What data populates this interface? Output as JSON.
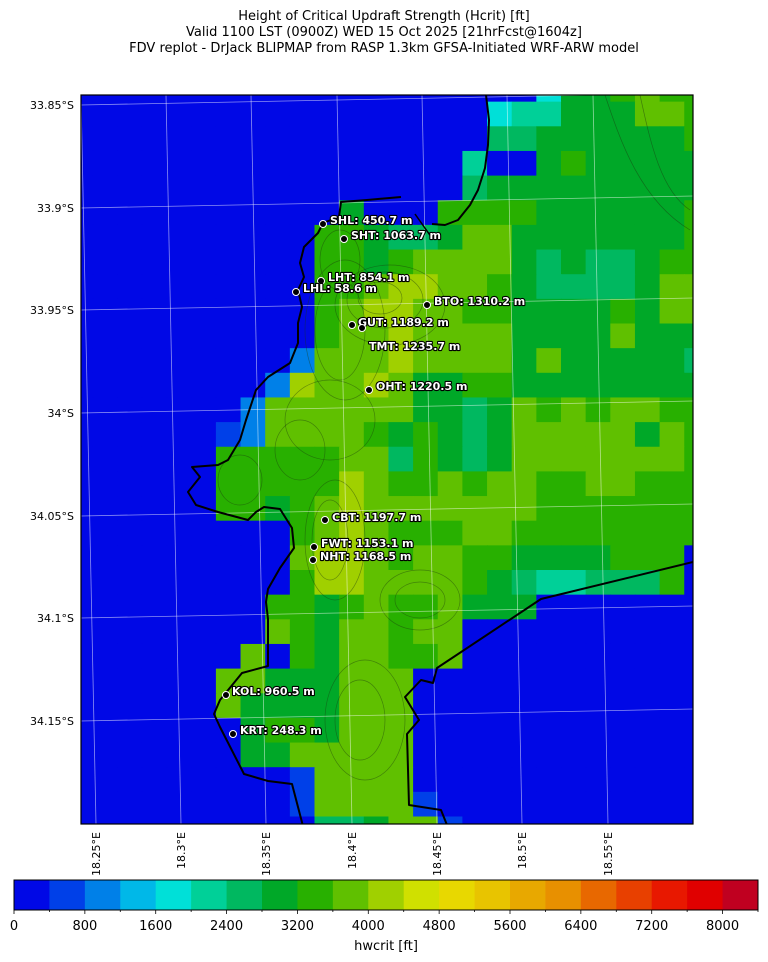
{
  "title": {
    "line1": "Height of Critical Updraft Strength (Hcrit) [ft]",
    "line2": "Valid 1100 LST (0900Z) WED 15 Oct 2025 [21hrFcst@1604z]",
    "line3": "FDV replot - DrJack BLIPMAP from RASP 1.3km GFSA-Initiated WRF-ARW model"
  },
  "chart_data": {
    "type": "heatmap",
    "variable": "hwcrit",
    "units": "ft",
    "colorbar_label": "hwcrit [ft]",
    "colorbar_range": [
      0,
      8400
    ],
    "colorbar_step": 400,
    "colorbar_ticks": [
      "0",
      "800",
      "1600",
      "2400",
      "3200",
      "4000",
      "4800",
      "5600",
      "6400",
      "7200",
      "8000"
    ],
    "colors": [
      "#0008e6",
      "#0040e8",
      "#0080e8",
      "#00b8e8",
      "#00e0d8",
      "#00d098",
      "#00b860",
      "#00a828",
      "#28b000",
      "#60c000",
      "#a0d000",
      "#d0e000",
      "#e8d800",
      "#e8c400",
      "#e8a800",
      "#e89000",
      "#e86800",
      "#e84000",
      "#e81800",
      "#e00000",
      "#c00020"
    ],
    "lat_ticks": [
      "33.85°S",
      "33.9°S",
      "33.95°S",
      "34°S",
      "34.05°S",
      "34.1°S",
      "34.15°S"
    ],
    "lon_ticks": [
      "18.25°E",
      "18.3°E",
      "18.35°E",
      "18.4°E",
      "18.45°E",
      "18.5°E",
      "18.55°E"
    ],
    "grid": true,
    "values_ft": [
      [
        200,
        200,
        200,
        200,
        200,
        200,
        200,
        200,
        200,
        200,
        200,
        200,
        200,
        200,
        200,
        200,
        200,
        200,
        200,
        1800,
        3000,
        3000,
        3400,
        3800,
        3400,
        3400
      ],
      [
        200,
        200,
        200,
        200,
        200,
        200,
        200,
        200,
        200,
        200,
        200,
        200,
        200,
        200,
        200,
        200,
        200,
        1800,
        2200,
        2200,
        3000,
        3000,
        3000,
        3800,
        3800,
        3400
      ],
      [
        200,
        200,
        200,
        200,
        200,
        200,
        200,
        200,
        200,
        200,
        200,
        200,
        200,
        200,
        200,
        200,
        200,
        2600,
        2600,
        3000,
        3000,
        3000,
        3000,
        3000,
        3000,
        3400
      ],
      [
        200,
        200,
        200,
        200,
        200,
        200,
        200,
        200,
        200,
        200,
        200,
        200,
        200,
        200,
        200,
        200,
        2200,
        200,
        200,
        3000,
        3400,
        3000,
        3000,
        3000,
        3000,
        3000
      ],
      [
        200,
        200,
        200,
        200,
        200,
        200,
        200,
        200,
        200,
        200,
        200,
        200,
        200,
        200,
        200,
        200,
        2600,
        3000,
        3000,
        3000,
        3000,
        3000,
        3000,
        3000,
        3000,
        3000
      ],
      [
        200,
        200,
        200,
        200,
        200,
        200,
        200,
        200,
        200,
        200,
        200,
        3000,
        200,
        200,
        200,
        3400,
        3400,
        3400,
        3400,
        3000,
        3000,
        3000,
        3000,
        3000,
        3000,
        3400
      ],
      [
        200,
        200,
        200,
        200,
        200,
        200,
        200,
        200,
        200,
        200,
        3400,
        3400,
        3000,
        2600,
        2600,
        3000,
        3800,
        3800,
        3000,
        3000,
        3000,
        3000,
        3000,
        3000,
        3000,
        3400
      ],
      [
        200,
        200,
        200,
        200,
        200,
        200,
        200,
        200,
        200,
        200,
        3400,
        3400,
        3000,
        3400,
        3800,
        3800,
        3800,
        3800,
        3000,
        2600,
        3000,
        2600,
        2600,
        3000,
        3400,
        3400
      ],
      [
        200,
        200,
        200,
        200,
        200,
        200,
        200,
        200,
        200,
        200,
        3400,
        3400,
        3800,
        4200,
        4200,
        3800,
        3800,
        3400,
        3000,
        2600,
        2600,
        2600,
        2600,
        3000,
        3800,
        3800
      ],
      [
        200,
        200,
        200,
        200,
        200,
        200,
        200,
        200,
        200,
        200,
        3400,
        3800,
        4200,
        4200,
        3800,
        3800,
        3400,
        3400,
        3000,
        3000,
        3000,
        3000,
        3400,
        3000,
        3800,
        3800
      ],
      [
        200,
        200,
        200,
        200,
        200,
        200,
        200,
        200,
        200,
        200,
        3400,
        3800,
        3800,
        4200,
        3800,
        3800,
        3800,
        3800,
        3000,
        3000,
        3000,
        3000,
        3800,
        3000,
        3000,
        3000
      ],
      [
        200,
        200,
        200,
        200,
        200,
        200,
        200,
        200,
        200,
        1000,
        3800,
        3800,
        3800,
        4200,
        3800,
        3800,
        3800,
        3800,
        3000,
        3800,
        3000,
        3000,
        3000,
        3000,
        3000,
        2600
      ],
      [
        200,
        200,
        200,
        200,
        200,
        200,
        200,
        200,
        1000,
        4200,
        3800,
        3800,
        4200,
        3800,
        3000,
        3000,
        3400,
        3400,
        3000,
        3000,
        3000,
        3000,
        3000,
        3000,
        3000,
        3000
      ],
      [
        200,
        200,
        200,
        200,
        200,
        200,
        200,
        1000,
        3800,
        3800,
        3800,
        3800,
        3800,
        3800,
        3000,
        3000,
        2600,
        3000,
        3800,
        3400,
        3800,
        3400,
        3800,
        3800,
        3400,
        3400
      ],
      [
        200,
        200,
        200,
        200,
        200,
        200,
        600,
        1000,
        3800,
        3800,
        3800,
        3800,
        3400,
        3000,
        3400,
        3000,
        2600,
        3000,
        3800,
        3800,
        3800,
        3800,
        3800,
        3000,
        3800,
        3400
      ],
      [
        200,
        200,
        200,
        200,
        200,
        200,
        3400,
        3400,
        3400,
        3400,
        3400,
        3800,
        3800,
        2600,
        3400,
        3000,
        2600,
        3000,
        3800,
        3800,
        3800,
        3800,
        3800,
        3800,
        3800,
        3400
      ],
      [
        200,
        200,
        200,
        200,
        200,
        200,
        3400,
        3400,
        3400,
        3400,
        3400,
        4200,
        3800,
        3400,
        3400,
        3800,
        3400,
        3800,
        3800,
        3400,
        3400,
        3800,
        3800,
        3400,
        3400,
        3400
      ],
      [
        200,
        200,
        200,
        200,
        200,
        200,
        3400,
        3400,
        3000,
        3400,
        3800,
        4200,
        3800,
        3800,
        3800,
        3800,
        3800,
        3800,
        3800,
        3400,
        3400,
        3400,
        3400,
        3400,
        3400,
        3400
      ],
      [
        200,
        200,
        200,
        200,
        200,
        200,
        200,
        200,
        200,
        3400,
        3800,
        4200,
        3800,
        3400,
        3400,
        3400,
        3800,
        3800,
        3400,
        3400,
        3400,
        3400,
        3400,
        3400,
        3400,
        3400
      ],
      [
        200,
        200,
        200,
        200,
        200,
        200,
        200,
        200,
        200,
        3800,
        4200,
        4200,
        3800,
        3400,
        3800,
        3800,
        3400,
        3400,
        3000,
        3000,
        3000,
        3000,
        3400,
        3400,
        3400,
        200
      ],
      [
        200,
        200,
        200,
        200,
        200,
        200,
        200,
        200,
        200,
        3400,
        4200,
        4200,
        3800,
        3800,
        3800,
        3800,
        3400,
        3000,
        2600,
        2200,
        2200,
        2600,
        2600,
        2600,
        3400,
        200
      ],
      [
        200,
        200,
        200,
        200,
        200,
        200,
        200,
        200,
        3400,
        3400,
        3000,
        3400,
        3800,
        3400,
        3400,
        3800,
        3000,
        3000,
        3000,
        200,
        200,
        200,
        200,
        200,
        200,
        200
      ],
      [
        200,
        200,
        200,
        200,
        200,
        200,
        200,
        200,
        3800,
        3400,
        3000,
        3800,
        3800,
        3400,
        3800,
        3800,
        200,
        200,
        200,
        200,
        200,
        200,
        200,
        200,
        200,
        200
      ],
      [
        200,
        200,
        200,
        200,
        200,
        200,
        200,
        3800,
        200,
        3400,
        3000,
        3800,
        3800,
        3400,
        3400,
        3800,
        200,
        200,
        200,
        200,
        200,
        200,
        200,
        200,
        200,
        200
      ],
      [
        200,
        200,
        200,
        200,
        200,
        200,
        3800,
        3800,
        3000,
        3000,
        3000,
        3800,
        3800,
        3800,
        200,
        200,
        200,
        200,
        200,
        200,
        200,
        200,
        200,
        200,
        200,
        200
      ],
      [
        200,
        200,
        200,
        200,
        200,
        200,
        3800,
        3000,
        3000,
        3000,
        3000,
        3800,
        3800,
        3800,
        200,
        200,
        200,
        200,
        200,
        200,
        200,
        200,
        200,
        200,
        200,
        200
      ],
      [
        200,
        200,
        200,
        200,
        200,
        200,
        200,
        3000,
        3400,
        3400,
        3000,
        3800,
        3800,
        3800,
        200,
        200,
        200,
        200,
        200,
        200,
        200,
        200,
        200,
        200,
        200,
        200
      ],
      [
        200,
        200,
        200,
        200,
        200,
        200,
        200,
        3000,
        3000,
        3800,
        3800,
        3800,
        3800,
        3800,
        200,
        200,
        200,
        200,
        200,
        200,
        200,
        200,
        200,
        200,
        200,
        200
      ],
      [
        200,
        200,
        200,
        200,
        200,
        200,
        200,
        200,
        200,
        600,
        3800,
        3800,
        3800,
        3800,
        200,
        200,
        200,
        200,
        200,
        200,
        200,
        200,
        200,
        200,
        200,
        200
      ],
      [
        200,
        200,
        200,
        200,
        200,
        200,
        200,
        200,
        200,
        600,
        3800,
        3800,
        3800,
        3800,
        600,
        200,
        200,
        200,
        200,
        200,
        200,
        200,
        200,
        200,
        200,
        200
      ],
      [
        200,
        200,
        200,
        200,
        200,
        200,
        200,
        200,
        200,
        200,
        2600,
        2600,
        3000,
        3800,
        3800,
        600,
        200,
        200,
        200,
        200,
        200,
        200,
        200,
        200,
        200,
        200
      ]
    ],
    "stations": [
      {
        "code": "SHL",
        "label": "SHL: 450.7 m"
      },
      {
        "code": "SHT",
        "label": "SHT: 1063.7 m"
      },
      {
        "code": "LHT",
        "label": "LHT: 854.1 m"
      },
      {
        "code": "LHL",
        "label": "LHL: 58.6 m"
      },
      {
        "code": "BTO",
        "label": "BTO: 1310.2 m"
      },
      {
        "code": "GUT",
        "label": "GUT: 1189.2 m"
      },
      {
        "code": "TMT",
        "label": "TMT: 1235.7 m"
      },
      {
        "code": "OHT",
        "label": "OHT: 1220.5 m"
      },
      {
        "code": "CBT",
        "label": "CBT: 1197.7 m"
      },
      {
        "code": "FWT",
        "label": "FWT: 1153.1 m"
      },
      {
        "code": "NHT",
        "label": "NHT: 1168.5 m"
      },
      {
        "code": "KOL",
        "label": "KOL: 960.5 m"
      },
      {
        "code": "KRT",
        "label": "KRT: 248.3 m"
      }
    ]
  }
}
